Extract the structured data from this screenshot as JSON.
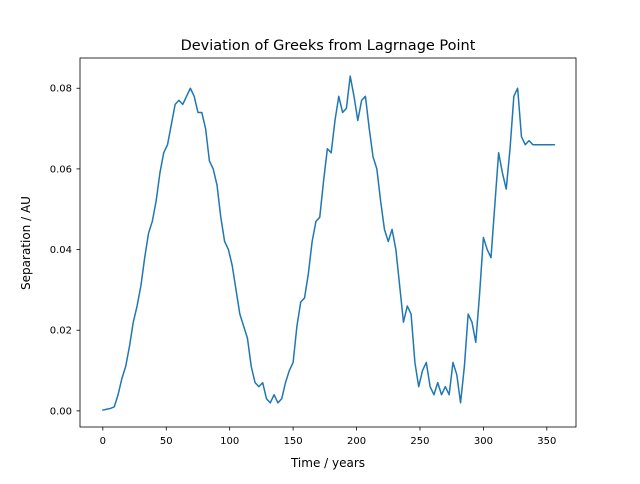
{
  "chart_data": {
    "type": "line",
    "title": "Deviation of Greeks from Lagrnage Point",
    "xlabel": "Time / years",
    "ylabel": "Separation / AU",
    "xlim": [
      -18,
      373
    ],
    "ylim": [
      -0.004,
      0.0875
    ],
    "xticks": [
      0,
      50,
      100,
      150,
      200,
      250,
      300,
      350
    ],
    "yticks": [
      0.0,
      0.02,
      0.04,
      0.06,
      0.08
    ],
    "xtick_labels": [
      "0",
      "50",
      "100",
      "150",
      "200",
      "250",
      "300",
      "350"
    ],
    "ytick_labels": [
      "0.00",
      "0.02",
      "0.04",
      "0.06",
      "0.08"
    ],
    "grid": false,
    "legend": "none",
    "series": [
      {
        "color": "#1f77b4",
        "x": [
          0,
          3,
          6,
          9,
          12,
          15,
          18,
          21,
          24,
          27,
          30,
          33,
          36,
          39,
          42,
          45,
          48,
          51,
          54,
          57,
          60,
          63,
          66,
          69,
          72,
          75,
          78,
          81,
          84,
          87,
          90,
          93,
          96,
          99,
          102,
          105,
          108,
          111,
          114,
          117,
          120,
          123,
          126,
          129,
          132,
          135,
          138,
          141,
          144,
          147,
          150,
          153,
          156,
          159,
          162,
          165,
          168,
          171,
          174,
          177,
          180,
          183,
          186,
          189,
          192,
          195,
          198,
          201,
          204,
          207,
          210,
          213,
          216,
          219,
          222,
          225,
          228,
          231,
          234,
          237,
          240,
          243,
          246,
          249,
          252,
          255,
          258,
          261,
          264,
          267,
          270,
          273,
          276,
          279,
          282,
          285,
          288,
          291,
          294,
          297,
          300,
          303,
          306,
          309,
          312,
          315,
          318,
          321,
          324,
          327,
          330,
          333,
          336,
          339,
          342,
          345,
          348,
          351,
          354,
          356
        ],
        "y": [
          0.0002,
          0.0004,
          0.0006,
          0.001,
          0.004,
          0.008,
          0.011,
          0.016,
          0.022,
          0.026,
          0.031,
          0.038,
          0.044,
          0.047,
          0.052,
          0.059,
          0.064,
          0.066,
          0.071,
          0.076,
          0.077,
          0.076,
          0.078,
          0.08,
          0.078,
          0.074,
          0.074,
          0.07,
          0.062,
          0.06,
          0.056,
          0.048,
          0.042,
          0.04,
          0.036,
          0.03,
          0.024,
          0.021,
          0.018,
          0.011,
          0.007,
          0.006,
          0.007,
          0.003,
          0.002,
          0.004,
          0.002,
          0.003,
          0.007,
          0.01,
          0.012,
          0.021,
          0.027,
          0.028,
          0.034,
          0.042,
          0.047,
          0.048,
          0.057,
          0.065,
          0.064,
          0.072,
          0.078,
          0.074,
          0.075,
          0.083,
          0.078,
          0.072,
          0.077,
          0.078,
          0.07,
          0.063,
          0.06,
          0.052,
          0.045,
          0.042,
          0.045,
          0.04,
          0.031,
          0.022,
          0.026,
          0.024,
          0.012,
          0.006,
          0.01,
          0.012,
          0.006,
          0.004,
          0.007,
          0.004,
          0.006,
          0.004,
          0.012,
          0.009,
          0.002,
          0.011,
          0.024,
          0.022,
          0.017,
          0.029,
          0.043,
          0.04,
          0.038,
          0.051,
          0.064,
          0.059,
          0.055,
          0.065,
          0.078,
          0.08,
          0.068,
          0.066,
          0.067,
          0.066,
          0.066,
          0.066,
          0.066,
          0.066,
          0.066,
          0.066
        ]
      }
    ]
  }
}
